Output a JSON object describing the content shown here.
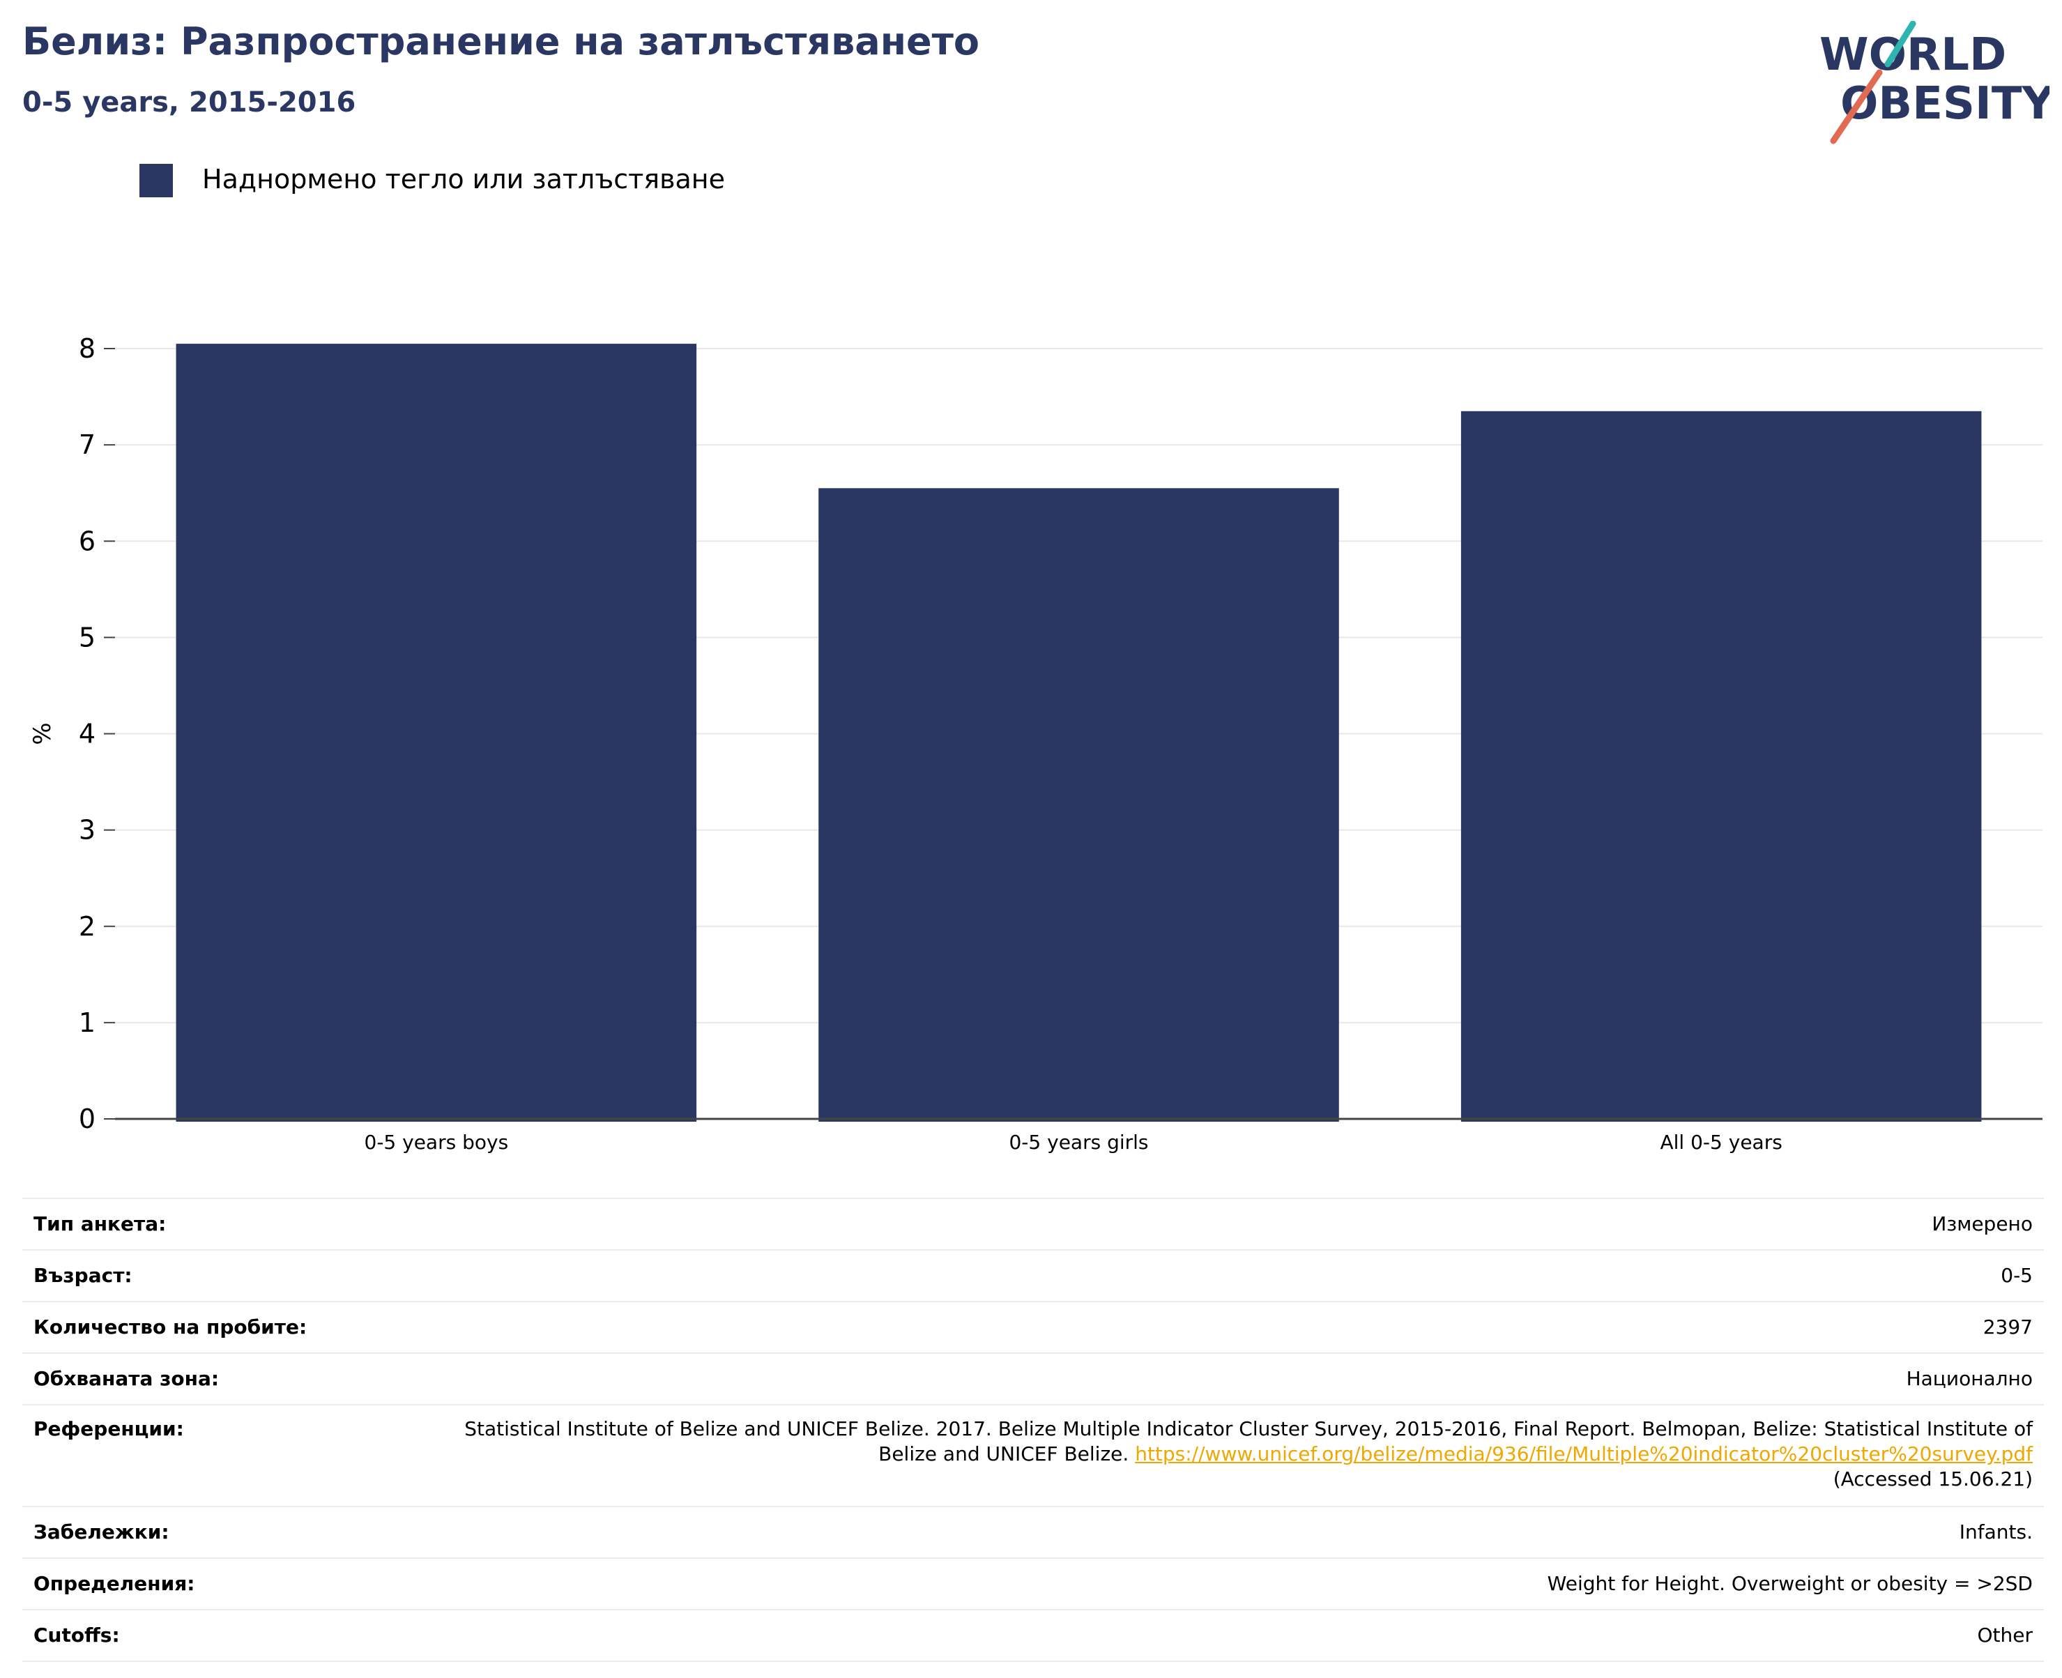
{
  "header": {
    "title": "Белиз: Разпространение на затлъстяването",
    "subtitle": "0-5 years, 2015-2016"
  },
  "logo": {
    "line1": "WORLD",
    "line2": "OBESITY",
    "stroke_colors": [
      "#2fb5b0",
      "#e06a52"
    ],
    "text_color": "#2a3762"
  },
  "legend": {
    "label": "Наднормено тегло или затлъстяване",
    "color": "#2a3762"
  },
  "chart_data": {
    "type": "bar",
    "categories": [
      "0-5 years boys",
      "0-5 years girls",
      "All 0-5 years"
    ],
    "series": [
      {
        "name": "Наднормено тегло или затлъстяване",
        "values": [
          8.05,
          6.55,
          7.35
        ],
        "color": "#2a3762"
      }
    ],
    "ylabel": "%",
    "ylim": [
      0,
      8
    ],
    "yticks": [
      "0",
      "1",
      "2",
      "3",
      "4",
      "5",
      "6",
      "7",
      "8"
    ],
    "grid": true
  },
  "info": {
    "rows": [
      {
        "key": "Тип анкета:",
        "value": "Измерено"
      },
      {
        "key": "Възраст:",
        "value": "0-5"
      },
      {
        "key": "Количество на пробите:",
        "value": "2397"
      },
      {
        "key": "Обхваната зона:",
        "value": "Национално"
      },
      {
        "key": "Референции:",
        "value": "Statistical Institute of Belize and UNICEF Belize. 2017. Belize Multiple Indicator Cluster Survey, 2015-2016, Final Report. Belmopan, Belize: Statistical Institute of Belize and UNICEF Belize.",
        "link": "https://www.unicef.org/belize/media/936/file/Multiple%20indicator%20cluster%20survey.pdf",
        "suffix": "(Accessed 15.06.21)"
      },
      {
        "key": "Забележки:",
        "value": "Infants."
      },
      {
        "key": "Определения:",
        "value": "Weight for Height. Overweight or obesity = >2SD"
      },
      {
        "key": "Cutoffs:",
        "value": "Other"
      }
    ]
  }
}
